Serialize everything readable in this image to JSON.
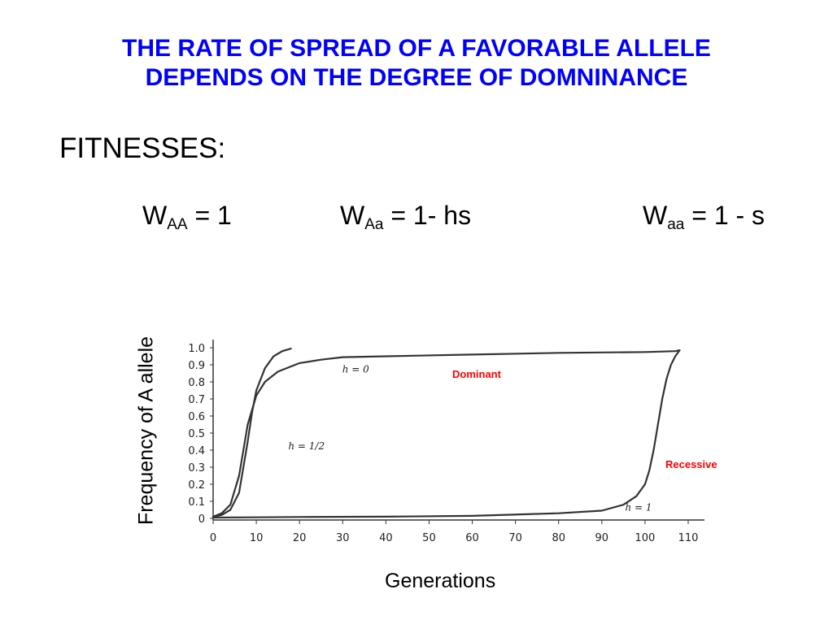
{
  "title": {
    "line1": "THE RATE OF SPREAD OF A FAVORABLE ALLELE",
    "line2": "DEPENDS ON THE DEGREE OF DOMNINANCE"
  },
  "fitnesses": {
    "label": "FITNESSES:",
    "w": "W",
    "AA_sub": "AA",
    "AA_rest": " = 1",
    "Aa_sub": "Aa",
    "Aa_rest": " = 1- hs",
    "aa_sub": "aa",
    "aa_rest": " = 1 - s"
  },
  "colors": {
    "title": "#0000ff",
    "annotation": "#ff0000",
    "curve": "#333333"
  },
  "chart_data": {
    "type": "line",
    "xlabel": "Generations",
    "ylabel": "Frequency of A allele",
    "xlim": [
      0,
      110
    ],
    "ylim": [
      0,
      1.0
    ],
    "x_ticks": [
      "0",
      "10",
      "20",
      "30",
      "40",
      "50",
      "60",
      "70",
      "80",
      "90",
      "100",
      "110"
    ],
    "y_ticks": [
      "0",
      "0.1",
      "0.2",
      "0.3",
      "0.4",
      "0.5",
      "0.6",
      "0.7",
      "0.8",
      "0.9",
      "1.0"
    ],
    "grid": false,
    "annotations": {
      "dominant": "Dominant",
      "recessive": "Recessive"
    },
    "series": [
      {
        "name": "h = 0",
        "x": [
          0,
          2,
          4,
          6,
          8,
          10,
          12,
          15,
          20,
          25,
          30,
          40,
          60,
          80,
          100,
          107,
          108
        ],
        "y": [
          0.01,
          0.03,
          0.08,
          0.25,
          0.55,
          0.72,
          0.8,
          0.86,
          0.91,
          0.93,
          0.945,
          0.95,
          0.96,
          0.97,
          0.975,
          0.98,
          0.985
        ]
      },
      {
        "name": "h = 1/2",
        "x": [
          0,
          2,
          4,
          6,
          7,
          8,
          9,
          10,
          12,
          14,
          16,
          18
        ],
        "y": [
          0.01,
          0.02,
          0.05,
          0.15,
          0.3,
          0.45,
          0.62,
          0.75,
          0.88,
          0.95,
          0.98,
          0.995
        ]
      },
      {
        "name": "h = 1",
        "x": [
          0,
          10,
          20,
          40,
          60,
          80,
          90,
          95,
          98,
          100,
          101,
          102,
          103,
          104,
          105,
          106,
          107,
          108
        ],
        "y": [
          0.005,
          0.006,
          0.008,
          0.01,
          0.015,
          0.03,
          0.045,
          0.08,
          0.13,
          0.2,
          0.28,
          0.4,
          0.55,
          0.7,
          0.82,
          0.9,
          0.95,
          0.985
        ]
      }
    ]
  }
}
